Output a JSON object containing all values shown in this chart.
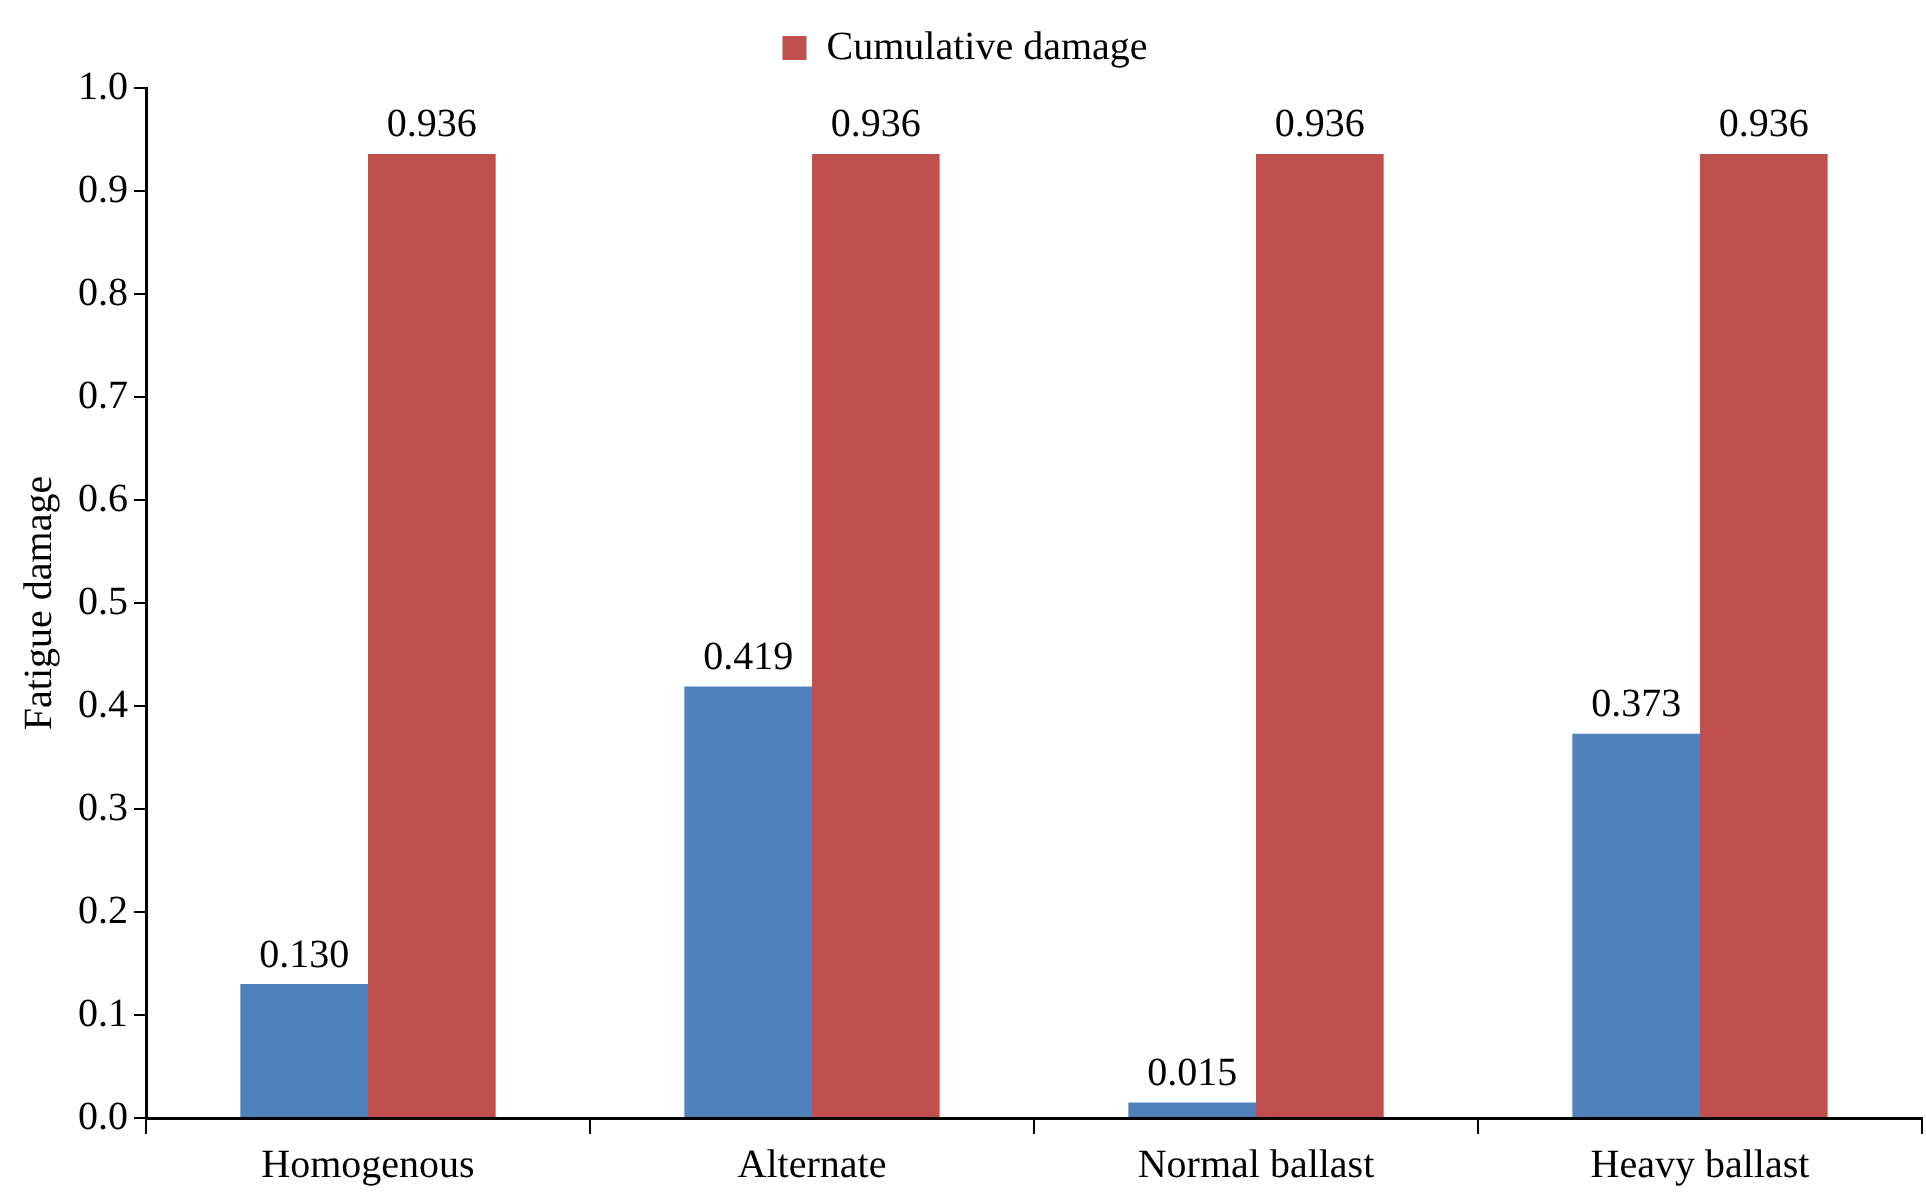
{
  "chart_data": {
    "type": "bar",
    "ylabel": "Fatigue damage",
    "categories": [
      "Homogenous",
      "Alternate",
      "Normal ballast",
      "Heavy ballast"
    ],
    "series": [
      {
        "color": "#4f81bd",
        "values": [
          0.13,
          0.419,
          0.015,
          0.373
        ],
        "value_labels": [
          "0.130",
          "0.419",
          "0.015",
          "0.373"
        ]
      },
      {
        "name": "Cumulative damage",
        "color": "#c0504d",
        "values": [
          0.936,
          0.936,
          0.936,
          0.936
        ],
        "value_labels": [
          "0.936",
          "0.936",
          "0.936",
          "0.936"
        ]
      }
    ],
    "ylim": [
      0,
      1
    ],
    "yticks": [
      {
        "value": 0,
        "label": "0.0"
      },
      {
        "value": 0.1,
        "label": "0.1"
      },
      {
        "value": 0.2,
        "label": "0.2"
      },
      {
        "value": 0.3,
        "label": "0.3"
      },
      {
        "value": 0.4,
        "label": "0.4"
      },
      {
        "value": 0.5,
        "label": "0.5"
      },
      {
        "value": 0.6,
        "label": "0.6"
      },
      {
        "value": 0.7,
        "label": "0.7"
      },
      {
        "value": 0.8,
        "label": "0.8"
      },
      {
        "value": 0.9,
        "label": "0.9"
      },
      {
        "value": 1,
        "label": "1.0"
      }
    ],
    "grid": false,
    "legend": "top"
  }
}
